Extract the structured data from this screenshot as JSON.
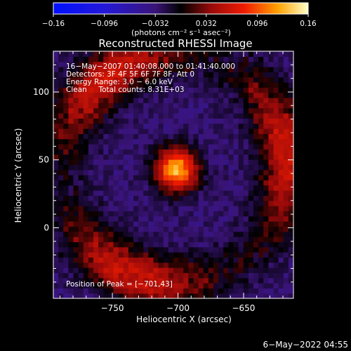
{
  "chart_data": {
    "type": "heatmap",
    "title": "Reconstructed RHESSI Image",
    "xlabel": "Heliocentric X (arcsec)",
    "ylabel": "Heliocentric Y (arcsec)",
    "xlim": [
      -795,
      -612
    ],
    "ylim": [
      -52,
      130
    ],
    "x_ticks": [
      -750,
      -700,
      -650
    ],
    "x_tick_labels": [
      "−750",
      "−700",
      "−650"
    ],
    "y_ticks": [
      0,
      50,
      100
    ],
    "y_tick_labels": [
      "0",
      "50",
      "100"
    ],
    "colorbar": {
      "range": [
        -0.16,
        0.16
      ],
      "ticks": [
        -0.16,
        -0.096,
        -0.032,
        0.032,
        0.096,
        0.16
      ],
      "tick_labels": [
        "−0.16",
        "−0.096",
        "−0.032",
        "0.032",
        "0.096",
        "0.16"
      ],
      "unit_label": "(photons cm⁻² s⁻¹ asec⁻²)"
    },
    "annotations": [
      "16−May−2007 01:40:08.000 to 01:41:40.000",
      "Detectors: 3F 4F 5F 6F 7F 8F, Att 0",
      "Energy Range: 3.0 − 6.0 keV",
      "Clean     Total counts: 8.31E+03"
    ],
    "peak_label": "Position of Peak = [−701,43]",
    "peak": {
      "x": -701,
      "y": 43,
      "value": 0.16
    },
    "features": [
      {
        "kind": "peak",
        "x": -701,
        "y": 43,
        "sx": 11,
        "sy": 11,
        "amp": 0.16
      },
      {
        "kind": "ring",
        "cx": -702,
        "cy": 44,
        "r": 85,
        "width": 14,
        "amp": 0.085
      },
      {
        "kind": "background",
        "value": -0.03
      }
    ]
  },
  "footer": {
    "timestamp": "6−May−2022 04:55"
  }
}
